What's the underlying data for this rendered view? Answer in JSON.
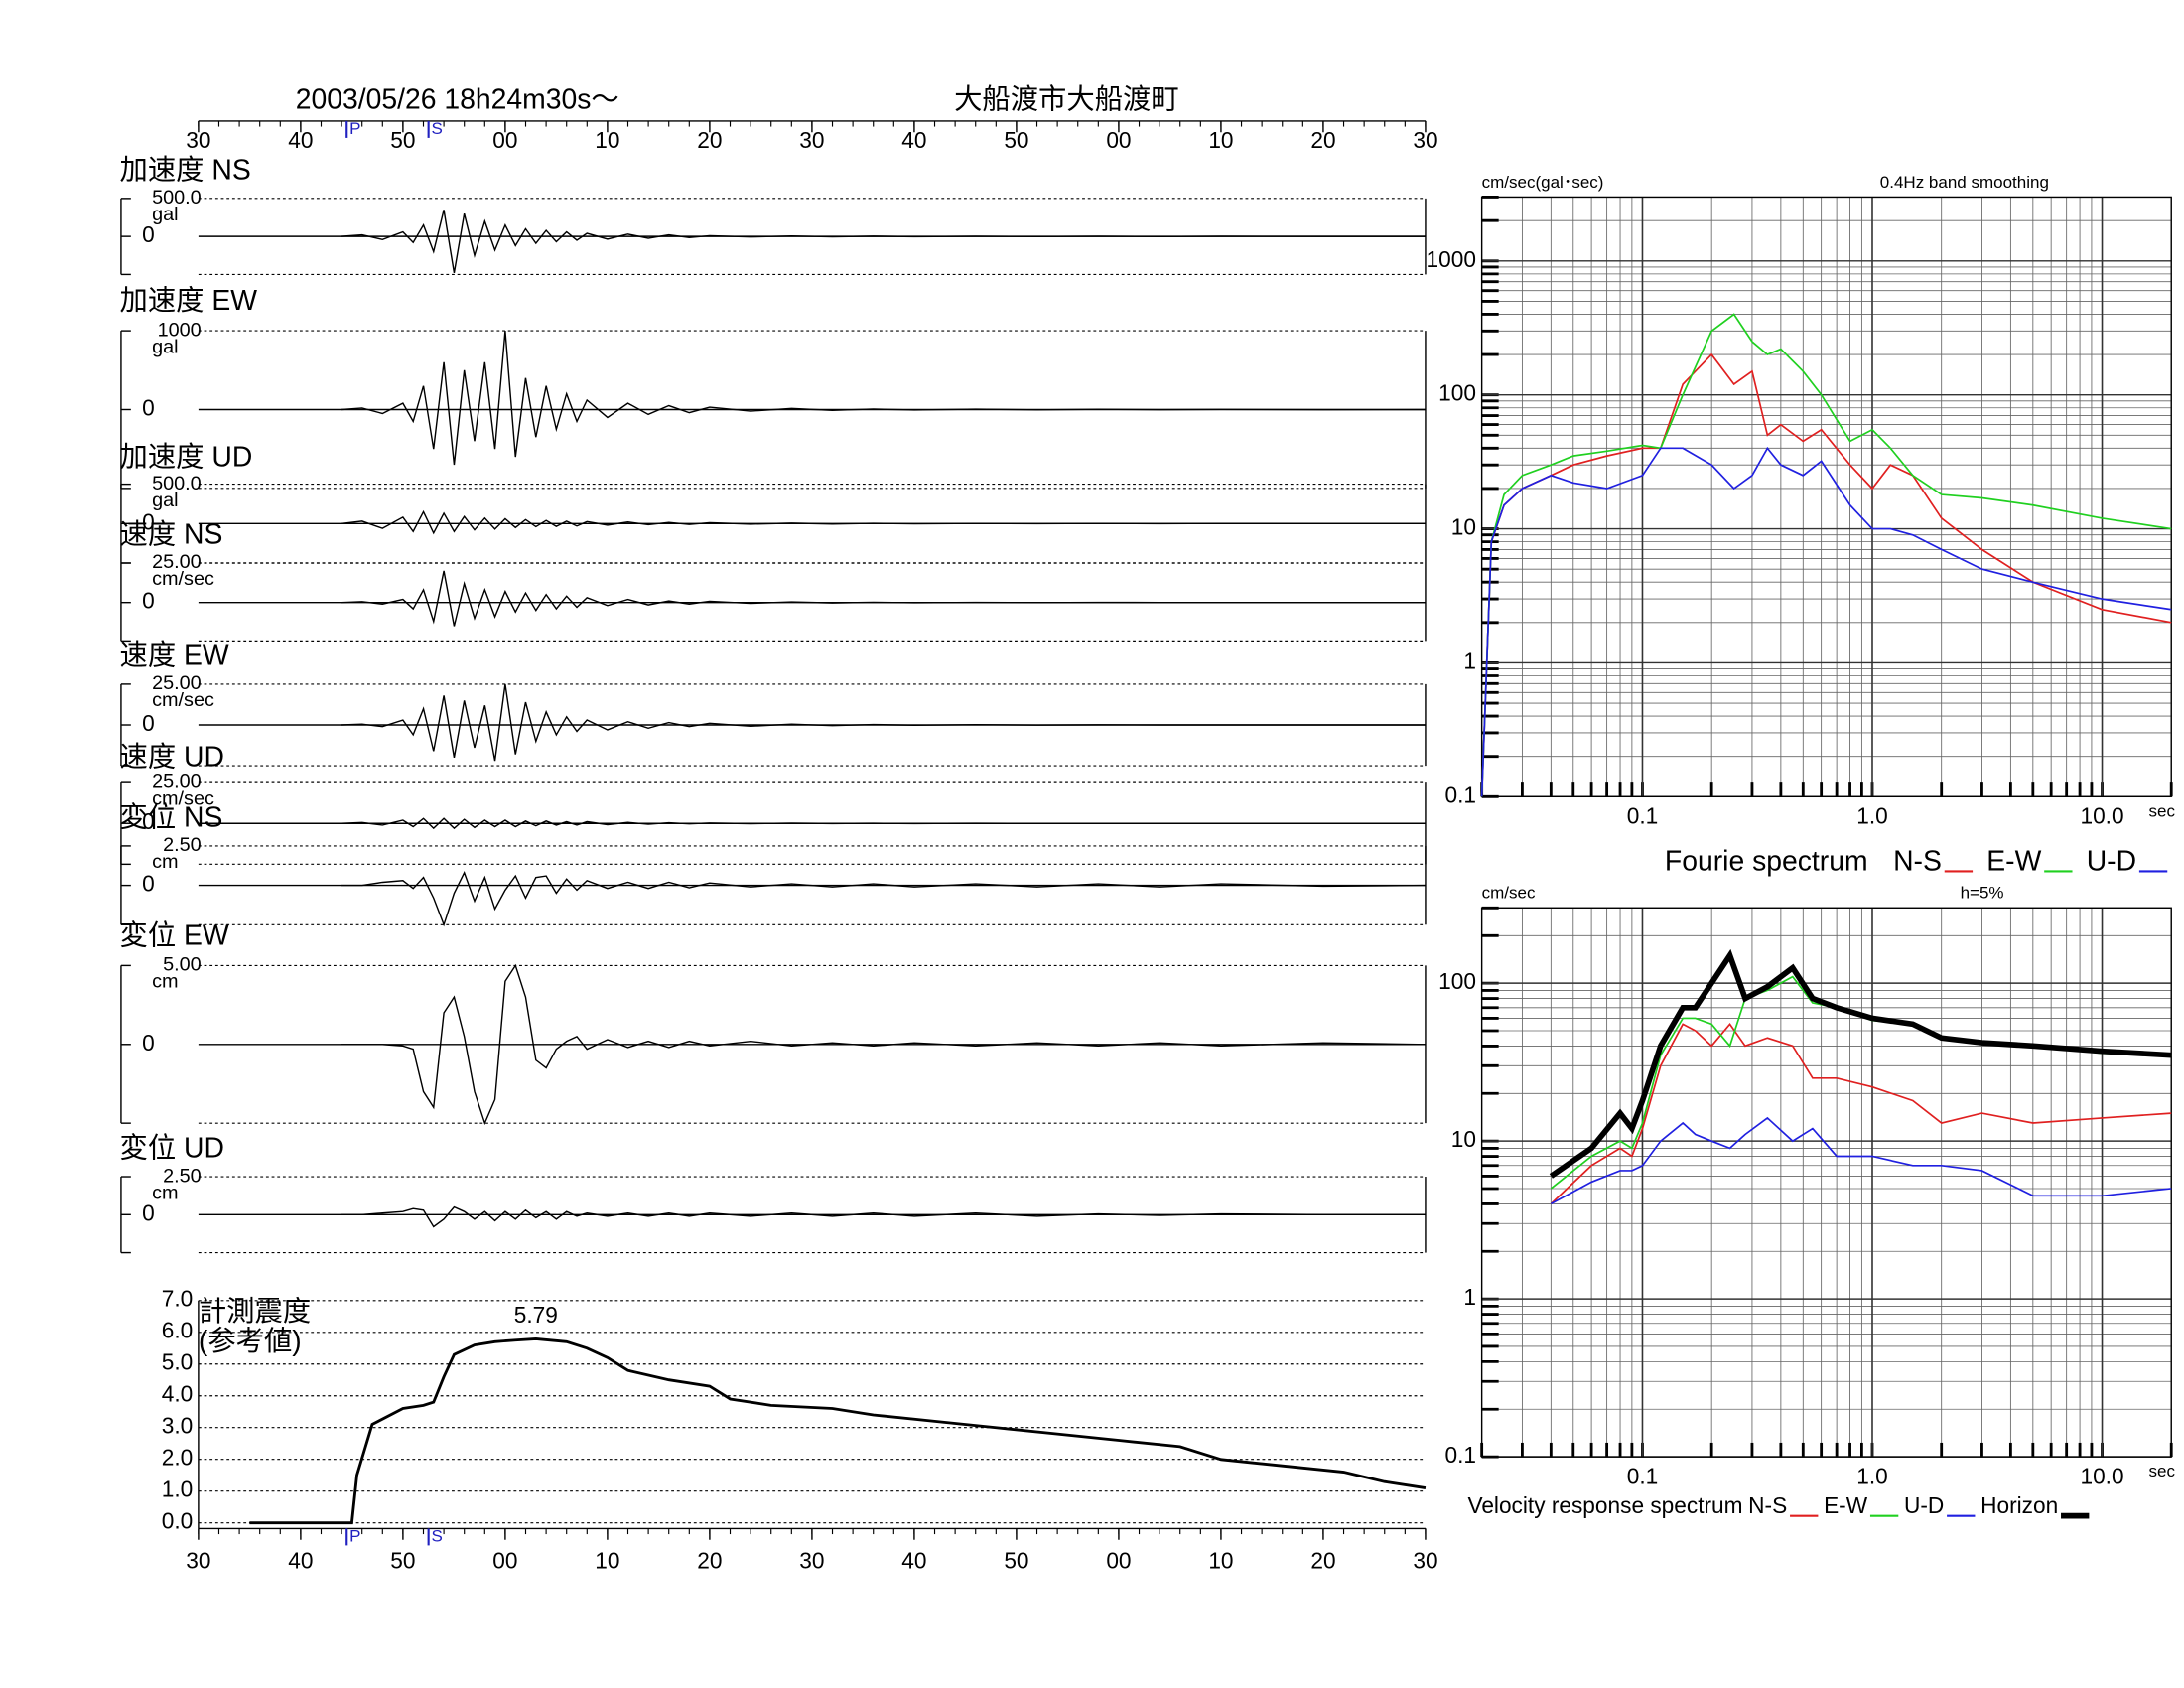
{
  "chart_data": [
    {
      "type": "waveforms",
      "date": "2003/05/26  18h24m30s〜",
      "station": "大船渡市大船渡町",
      "xlim": [
        30,
        150
      ],
      "xticks": [
        30,
        40,
        50,
        {
          "value": 60,
          "label": "00"
        },
        {
          "value": 70,
          "label": "10"
        },
        {
          "value": 80,
          "label": "20"
        },
        {
          "value": 90,
          "label": "30"
        },
        {
          "value": 100,
          "label": "40"
        },
        {
          "value": 110,
          "label": "50"
        },
        {
          "value": 120,
          "label": "00"
        },
        {
          "value": 130,
          "label": "10"
        },
        {
          "value": 140,
          "label": "20"
        },
        {
          "value": 150,
          "label": "30"
        }
      ],
      "phases": [
        {
          "label": "P",
          "value": 44.5
        },
        {
          "label": "S",
          "value": 52.5
        }
      ],
      "x": [
        44,
        46,
        48,
        50,
        51,
        52,
        53,
        54,
        55,
        56,
        57,
        58,
        59,
        60,
        61,
        62,
        63,
        64,
        65,
        66,
        67,
        68,
        70,
        72,
        74,
        76,
        78,
        80,
        84,
        88,
        92,
        96,
        100,
        106,
        112,
        118,
        124,
        130,
        140,
        150
      ],
      "traces": [
        {
          "title": "加速度 NS",
          "unit": "gal",
          "ylim": [
            -500,
            500
          ],
          "yticks": [
            {
              "value": 500,
              "label": "500.0"
            },
            0
          ],
          "values": [
            0,
            20,
            -40,
            60,
            -80,
            150,
            -200,
            350,
            -480,
            300,
            -250,
            200,
            -180,
            150,
            -120,
            100,
            -90,
            80,
            -70,
            60,
            -50,
            40,
            -35,
            30,
            -25,
            20,
            -15,
            10,
            -8,
            6,
            -5,
            4,
            -3,
            2,
            -2,
            1,
            -1,
            1,
            0,
            0
          ]
        },
        {
          "title": "加速度 EW",
          "unit": "gal",
          "ylim": [
            -1000,
            1000
          ],
          "yticks": [
            1000,
            0
          ],
          "values": [
            0,
            20,
            -50,
            80,
            -150,
            300,
            -500,
            600,
            -700,
            500,
            -400,
            600,
            -500,
            1000,
            -600,
            400,
            -350,
            300,
            -250,
            200,
            -150,
            120,
            -100,
            80,
            -60,
            50,
            -40,
            30,
            -20,
            15,
            -10,
            8,
            -6,
            5,
            -4,
            3,
            -2,
            1,
            -1,
            0
          ]
        },
        {
          "title": "加速度 UD",
          "unit": "gal",
          "ylim": [
            -500,
            500
          ],
          "yticks": [
            {
              "value": 500,
              "label": "500.0"
            },
            0
          ],
          "values": [
            0,
            30,
            -60,
            80,
            -100,
            150,
            -120,
            130,
            -100,
            90,
            -80,
            70,
            -70,
            60,
            -50,
            50,
            -40,
            40,
            -35,
            30,
            -30,
            25,
            -20,
            20,
            -15,
            15,
            -10,
            10,
            -8,
            6,
            -5,
            4,
            -3,
            2,
            -2,
            1,
            -1,
            1,
            0,
            0
          ]
        },
        {
          "title": "速度 NS",
          "unit": "cm/sec",
          "ylim": [
            -25,
            25
          ],
          "yticks": [
            {
              "value": 25,
              "label": "25.00"
            },
            0
          ],
          "values": [
            0,
            0.5,
            -1,
            2,
            -4,
            8,
            -12,
            20,
            -15,
            12,
            -10,
            8,
            -9,
            7,
            -6,
            6,
            -5,
            5,
            -4,
            4,
            -3,
            3,
            -2,
            2,
            -1.5,
            1,
            -1,
            0.8,
            -0.5,
            0.4,
            -0.3,
            0.2,
            -0.2,
            0.1,
            -0.1,
            0.1,
            0,
            0,
            0,
            0
          ]
        },
        {
          "title": "速度 EW",
          "unit": "cm/sec",
          "ylim": [
            -25,
            25
          ],
          "yticks": [
            {
              "value": 25,
              "label": "25.00"
            },
            0
          ],
          "values": [
            0,
            0.5,
            -1,
            3,
            -6,
            10,
            -16,
            18,
            -20,
            15,
            -14,
            12,
            -22,
            25,
            -18,
            14,
            -10,
            8,
            -6,
            5,
            -4,
            3,
            -3,
            2,
            -2,
            1.5,
            -1,
            1,
            -0.8,
            0.5,
            -0.4,
            0.3,
            -0.2,
            0.2,
            -0.1,
            0.1,
            0,
            0,
            0,
            0
          ]
        },
        {
          "title": "速度 UD",
          "unit": "cm/sec",
          "ylim": [
            -25,
            25
          ],
          "yticks": [
            {
              "value": 25,
              "label": "25.00"
            },
            0
          ],
          "values": [
            0,
            0.5,
            -1,
            2,
            -2,
            3,
            -3,
            3,
            -3,
            2.5,
            -2.5,
            2,
            -2,
            2,
            -2,
            1.5,
            -1.5,
            1.5,
            -1,
            1,
            -1,
            1,
            -0.8,
            0.6,
            -0.5,
            0.4,
            -0.3,
            0.3,
            -0.2,
            0.2,
            -0.1,
            0.1,
            -0.1,
            0.1,
            0,
            0,
            0,
            0,
            0,
            0
          ]
        },
        {
          "title": "変位 NS",
          "unit": "cm",
          "ylim": [
            -2.5,
            2.5
          ],
          "yticks": [
            {
              "value": 2.5,
              "label": "2.50"
            },
            0
          ],
          "values": [
            0,
            0,
            0.2,
            0.3,
            -0.2,
            0.5,
            -0.8,
            -2.5,
            -0.5,
            0.8,
            -1,
            0.5,
            -1.5,
            -0.3,
            0.6,
            -0.8,
            0.5,
            0.6,
            -0.5,
            0.4,
            -0.3,
            0.3,
            -0.2,
            0.2,
            -0.2,
            0.2,
            -0.15,
            0.15,
            -0.1,
            0.1,
            -0.1,
            0.1,
            -0.1,
            0.1,
            -0.1,
            0.1,
            -0.1,
            0.1,
            -0.05,
            0
          ]
        },
        {
          "title": "変位 EW",
          "unit": "cm",
          "ylim": [
            -5,
            5
          ],
          "yticks": [
            {
              "value": 5,
              "label": "5.00"
            },
            0
          ],
          "values": [
            0,
            0,
            0,
            -0.1,
            -0.3,
            -3,
            -4,
            2,
            3,
            0.5,
            -3,
            -5,
            -3.5,
            4,
            5,
            3,
            -1,
            -1.5,
            -0.3,
            0.2,
            0.5,
            -0.3,
            0.3,
            -0.2,
            0.2,
            -0.2,
            0.2,
            -0.1,
            0.2,
            -0.1,
            0.1,
            -0.1,
            0.1,
            -0.1,
            0.1,
            -0.1,
            0.1,
            -0.1,
            0.1,
            0
          ]
        },
        {
          "title": "変位 UD",
          "unit": "cm",
          "ylim": [
            -2.5,
            2.5
          ],
          "yticks": [
            {
              "value": 2.5,
              "label": "2.50"
            },
            0
          ],
          "values": [
            0,
            0,
            0.1,
            0.2,
            0.4,
            0.3,
            -0.8,
            -0.3,
            0.5,
            0.2,
            -0.3,
            0.2,
            -0.4,
            0.2,
            -0.3,
            0.3,
            -0.2,
            0.2,
            -0.3,
            0.2,
            -0.1,
            0.1,
            -0.1,
            0.1,
            -0.1,
            0.1,
            -0.1,
            0.1,
            -0.1,
            0.1,
            -0.1,
            0.1,
            -0.1,
            0.1,
            -0.1,
            0.05,
            -0.05,
            0.05,
            0,
            0
          ]
        }
      ]
    },
    {
      "type": "line",
      "title": [
        "計測震度",
        "(参考値)"
      ],
      "peak_label": "5.79",
      "xlim": [
        30,
        150
      ],
      "xticks": [
        30,
        40,
        50,
        {
          "value": 60,
          "label": "00"
        },
        {
          "value": 70,
          "label": "10"
        },
        {
          "value": 80,
          "label": "20"
        },
        {
          "value": 90,
          "label": "30"
        },
        {
          "value": 100,
          "label": "40"
        },
        {
          "value": 110,
          "label": "50"
        },
        {
          "value": 120,
          "label": "00"
        },
        {
          "value": 130,
          "label": "10"
        },
        {
          "value": 140,
          "label": "20"
        },
        {
          "value": 150,
          "label": "30"
        }
      ],
      "phases": [
        {
          "label": "P",
          "value": 44.5
        },
        {
          "label": "S",
          "value": 52.5
        }
      ],
      "ylim": [
        0,
        7
      ],
      "yticks": [
        {
          "value": 0,
          "label": "0.0"
        },
        {
          "value": 1,
          "label": "1.0"
        },
        {
          "value": 2,
          "label": "2.0"
        },
        {
          "value": 3,
          "label": "3.0"
        },
        {
          "value": 4,
          "label": "4.0"
        },
        {
          "value": 5,
          "label": "5.0"
        },
        {
          "value": 6,
          "label": "6.0"
        },
        {
          "value": 7,
          "label": "7.0"
        }
      ],
      "x": [
        35,
        45,
        45.5,
        47,
        50,
        52,
        53,
        54,
        55,
        57,
        59,
        61,
        63,
        66,
        68,
        70,
        72,
        76,
        80,
        82,
        86,
        92,
        96,
        102,
        108,
        114,
        120,
        126,
        130,
        136,
        142,
        146,
        150
      ],
      "values": [
        0,
        0,
        1.5,
        3.1,
        3.6,
        3.7,
        3.8,
        4.6,
        5.3,
        5.6,
        5.7,
        5.75,
        5.79,
        5.7,
        5.5,
        5.2,
        4.8,
        4.5,
        4.3,
        3.9,
        3.7,
        3.6,
        3.4,
        3.2,
        3.0,
        2.8,
        2.6,
        2.4,
        2.0,
        1.8,
        1.6,
        1.3,
        1.1
      ],
      "color": "#000000"
    },
    {
      "type": "loglog",
      "title": "Fourie spectrum",
      "y_label": "cm/sec(gal･sec)",
      "note": "0.4Hz band smoothing",
      "x_label": "sec",
      "log_x": true,
      "log_y": true,
      "grid": true,
      "xlim": [
        0.02,
        20
      ],
      "xticks": [
        0.1,
        {
          "value": 1,
          "label": "1.0"
        },
        {
          "value": 10,
          "label": "10.0"
        }
      ],
      "ylim": [
        0.1,
        3000
      ],
      "yticks": [
        0.1,
        1,
        10,
        100,
        1000
      ],
      "x": [
        0.02,
        0.022,
        0.025,
        0.03,
        0.04,
        0.05,
        0.07,
        0.1,
        0.12,
        0.15,
        0.2,
        0.25,
        0.3,
        0.35,
        0.4,
        0.5,
        0.6,
        0.8,
        1.0,
        1.2,
        1.5,
        2,
        3,
        5,
        10,
        20
      ],
      "series": [
        {
          "name": "N-S",
          "color": "#e02020",
          "values": [
            0.1,
            8,
            15,
            20,
            25,
            30,
            35,
            40,
            40,
            120,
            200,
            120,
            150,
            50,
            60,
            45,
            55,
            30,
            20,
            30,
            25,
            12,
            7,
            4,
            2.5,
            2
          ]
        },
        {
          "name": "E-W",
          "color": "#20d020",
          "values": [
            0.1,
            8,
            18,
            25,
            30,
            35,
            38,
            42,
            40,
            100,
            300,
            400,
            250,
            200,
            220,
            150,
            100,
            45,
            55,
            40,
            25,
            18,
            17,
            15,
            12,
            10
          ]
        },
        {
          "name": "U-D",
          "color": "#2020e0",
          "values": [
            0.1,
            8,
            15,
            20,
            25,
            22,
            20,
            25,
            40,
            40,
            30,
            20,
            25,
            40,
            30,
            25,
            32,
            15,
            10,
            10,
            9,
            7,
            5,
            4,
            3,
            2.5
          ]
        }
      ]
    },
    {
      "type": "loglog",
      "title": "Velocity response spectrum",
      "y_label": "cm/sec",
      "note": "h=5%",
      "x_label": "sec",
      "log_x": true,
      "log_y": true,
      "grid": true,
      "xlim": [
        0.02,
        20
      ],
      "xticks": [
        0.1,
        {
          "value": 1,
          "label": "1.0"
        },
        {
          "value": 10,
          "label": "10.0"
        }
      ],
      "ylim": [
        0.1,
        300
      ],
      "yticks": [
        0.1,
        1,
        10,
        100
      ],
      "x": [
        0.04,
        0.06,
        0.08,
        0.09,
        0.1,
        0.12,
        0.15,
        0.17,
        0.2,
        0.24,
        0.28,
        0.35,
        0.45,
        0.55,
        0.7,
        1.0,
        1.5,
        2,
        3,
        5,
        10,
        20
      ],
      "series": [
        {
          "name": "N-S",
          "color": "#e02020",
          "values": [
            4,
            7,
            9,
            8,
            12,
            30,
            55,
            50,
            40,
            55,
            40,
            45,
            40,
            25,
            25,
            22,
            18,
            13,
            15,
            13,
            14,
            15
          ]
        },
        {
          "name": "E-W",
          "color": "#20d020",
          "values": [
            5,
            8,
            10,
            9,
            13,
            35,
            60,
            60,
            55,
            40,
            80,
            90,
            110,
            75,
            70,
            58,
            55,
            45,
            42,
            40,
            36,
            35
          ]
        },
        {
          "name": "U-D",
          "color": "#2020e0",
          "values": [
            4,
            5.5,
            6.5,
            6.5,
            7,
            10,
            13,
            11,
            10,
            9,
            11,
            14,
            10,
            12,
            8,
            8,
            7,
            7,
            6.5,
            4.5,
            4.5,
            5
          ]
        },
        {
          "name": "Horizon",
          "color": "#000000",
          "values": [
            6,
            9,
            15,
            12,
            18,
            40,
            70,
            70,
            100,
            150,
            80,
            95,
            125,
            80,
            70,
            60,
            55,
            45,
            42,
            40,
            37,
            35
          ]
        }
      ]
    }
  ]
}
